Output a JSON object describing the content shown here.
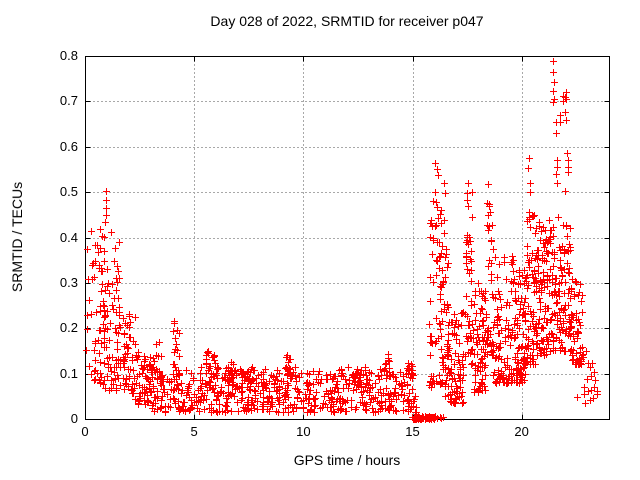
{
  "chart_data": {
    "type": "scatter",
    "title": "Day 028 of 2022, SRMTID for receiver p047",
    "xlabel": "GPS time / hours",
    "ylabel": "SRMTID / TECUs",
    "xlim": [
      0,
      24
    ],
    "ylim": [
      0,
      0.8
    ],
    "xticks": [
      [
        0,
        "0"
      ],
      [
        5,
        "5"
      ],
      [
        10,
        "10"
      ],
      [
        15,
        "15"
      ],
      [
        20,
        "20"
      ]
    ],
    "yticks": [
      [
        0,
        "0"
      ],
      [
        0.1,
        "0.1"
      ],
      [
        0.2,
        "0.2"
      ],
      [
        0.3,
        "0.3"
      ],
      [
        0.4,
        "0.4"
      ],
      [
        0.5,
        "0.5"
      ],
      [
        0.6,
        "0.6"
      ],
      [
        0.7,
        "0.7"
      ],
      [
        0.8,
        "0.8"
      ]
    ],
    "grid": true,
    "grid_style": "dotted",
    "grid_color": "#a8a8a8",
    "axis_color": "#000000",
    "background_color": "#ffffff",
    "marker": "plus",
    "marker_color": "#ff0000",
    "marker_size_px": 7,
    "rng_seed": 20220128,
    "segments_key": "[x_start_hours, x_end_hours, n_points, y_min_tecu, y_max_tecu, bottom_bias_exponent]",
    "segments": [
      [
        0.05,
        0.75,
        50,
        0.08,
        0.42,
        1.5
      ],
      [
        0.75,
        1.6,
        85,
        0.06,
        0.42,
        1.3
      ],
      [
        1.6,
        2.3,
        55,
        0.05,
        0.24,
        1.2
      ],
      [
        2.3,
        3.0,
        55,
        0.03,
        0.15,
        1.2
      ],
      [
        3.0,
        15.2,
        640,
        0.015,
        0.115,
        1.15
      ],
      [
        3.1,
        3.5,
        14,
        0.1,
        0.2,
        1.5
      ],
      [
        4.0,
        4.35,
        16,
        0.1,
        0.23,
        1.5
      ],
      [
        5.5,
        6.05,
        22,
        0.09,
        0.155,
        1.2
      ],
      [
        6.45,
        6.85,
        14,
        0.09,
        0.13,
        1.2
      ],
      [
        7.2,
        7.5,
        8,
        0.08,
        0.115,
        1.2
      ],
      [
        9.2,
        9.55,
        14,
        0.09,
        0.145,
        1.2
      ],
      [
        12.3,
        12.6,
        10,
        0.08,
        0.12,
        1.2
      ],
      [
        13.65,
        13.95,
        12,
        0.09,
        0.148,
        1.2
      ],
      [
        14.75,
        15.05,
        10,
        0.08,
        0.125,
        1.2
      ],
      [
        14.95,
        16.15,
        75,
        0.0,
        0.006,
        1.0
      ],
      [
        16.2,
        16.5,
        3,
        0.0,
        0.005,
        1.0
      ],
      [
        15.75,
        16.35,
        70,
        0.07,
        0.5,
        1.25
      ],
      [
        16.3,
        16.65,
        28,
        0.1,
        0.45,
        1.5
      ],
      [
        16.5,
        17.35,
        85,
        0.035,
        0.27,
        1.7
      ],
      [
        17.4,
        17.75,
        45,
        0.12,
        0.5,
        1.4
      ],
      [
        17.75,
        18.35,
        70,
        0.06,
        0.3,
        1.6
      ],
      [
        18.35,
        18.7,
        40,
        0.14,
        0.49,
        1.5
      ],
      [
        18.7,
        19.6,
        90,
        0.08,
        0.36,
        1.7
      ],
      [
        19.6,
        20.15,
        80,
        0.08,
        0.33,
        1.5
      ],
      [
        20.15,
        20.6,
        65,
        0.12,
        0.46,
        1.6
      ],
      [
        20.6,
        21.15,
        80,
        0.14,
        0.44,
        1.4
      ],
      [
        21.15,
        22.3,
        150,
        0.15,
        0.46,
        1.5
      ],
      [
        22.3,
        22.8,
        48,
        0.12,
        0.32,
        1.4
      ],
      [
        22.8,
        23.5,
        16,
        0.04,
        0.16,
        1.3
      ]
    ],
    "highlight_points": [
      [
        0.93,
        0.435
      ],
      [
        0.95,
        0.45
      ],
      [
        0.96,
        0.465
      ],
      [
        0.94,
        0.483
      ],
      [
        0.95,
        0.503
      ],
      [
        16.02,
        0.5
      ],
      [
        16.05,
        0.565
      ],
      [
        16.1,
        0.55
      ],
      [
        16.16,
        0.538
      ],
      [
        16.42,
        0.52
      ],
      [
        16.47,
        0.498
      ],
      [
        17.52,
        0.52
      ],
      [
        17.48,
        0.497
      ],
      [
        17.55,
        0.47
      ],
      [
        18.48,
        0.518
      ],
      [
        18.52,
        0.47
      ],
      [
        18.45,
        0.45
      ],
      [
        20.32,
        0.575
      ],
      [
        20.3,
        0.553
      ],
      [
        20.4,
        0.52
      ],
      [
        20.36,
        0.5
      ],
      [
        21.44,
        0.79
      ],
      [
        21.45,
        0.765
      ],
      [
        21.47,
        0.742
      ],
      [
        21.43,
        0.722
      ],
      [
        21.46,
        0.706
      ],
      [
        21.42,
        0.698
      ],
      [
        21.55,
        0.655
      ],
      [
        21.57,
        0.631
      ],
      [
        21.6,
        0.571
      ],
      [
        21.62,
        0.556
      ],
      [
        21.58,
        0.541
      ],
      [
        21.63,
        0.521
      ],
      [
        21.74,
        0.67
      ],
      [
        21.77,
        0.654
      ],
      [
        21.89,
        0.712
      ],
      [
        21.91,
        0.7
      ],
      [
        22.01,
        0.72
      ],
      [
        22.0,
        0.71
      ],
      [
        22.03,
        0.705
      ],
      [
        22.0,
        0.676
      ],
      [
        22.02,
        0.658
      ],
      [
        22.08,
        0.586
      ],
      [
        22.1,
        0.571
      ],
      [
        22.12,
        0.556
      ],
      [
        22.14,
        0.545
      ],
      [
        22.0,
        0.503
      ],
      [
        22.54,
        0.048
      ],
      [
        22.9,
        0.035
      ],
      [
        23.05,
        0.062
      ],
      [
        23.15,
        0.115
      ]
    ]
  }
}
